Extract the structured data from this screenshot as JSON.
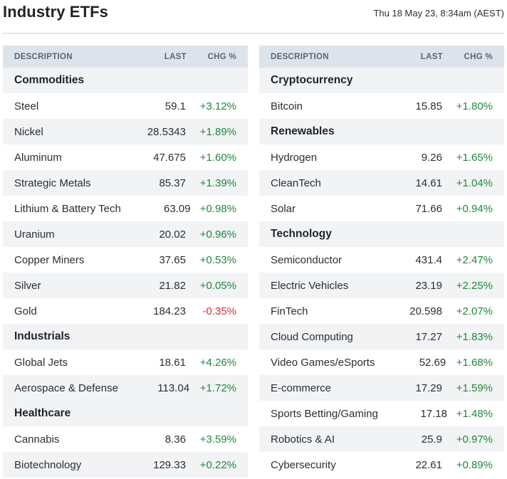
{
  "header": {
    "title": "Industry ETFs",
    "timestamp": "Thu 18 May 23, 8:34am (AEST)"
  },
  "columns": {
    "description": "DESCRIPTION",
    "last": "LAST",
    "chg": "CHG %"
  },
  "left_table": [
    {
      "type": "group",
      "label": "Commodities"
    },
    {
      "type": "item",
      "name": "Steel",
      "last": "59.1",
      "chg": "+3.12%",
      "dir": "pos"
    },
    {
      "type": "item",
      "name": "Nickel",
      "last": "28.5343",
      "chg": "+1.89%",
      "dir": "pos"
    },
    {
      "type": "item",
      "name": "Aluminum",
      "last": "47.675",
      "chg": "+1.60%",
      "dir": "pos"
    },
    {
      "type": "item",
      "name": "Strategic Metals",
      "last": "85.37",
      "chg": "+1.39%",
      "dir": "pos"
    },
    {
      "type": "item",
      "name": "Lithium & Battery Tech",
      "last": "63.09",
      "chg": "+0.98%",
      "dir": "pos"
    },
    {
      "type": "item",
      "name": "Uranium",
      "last": "20.02",
      "chg": "+0.96%",
      "dir": "pos"
    },
    {
      "type": "item",
      "name": "Copper Miners",
      "last": "37.65",
      "chg": "+0.53%",
      "dir": "pos"
    },
    {
      "type": "item",
      "name": "Silver",
      "last": "21.82",
      "chg": "+0.05%",
      "dir": "pos"
    },
    {
      "type": "item",
      "name": "Gold",
      "last": "184.23",
      "chg": "-0.35%",
      "dir": "neg"
    },
    {
      "type": "group",
      "label": "Industrials"
    },
    {
      "type": "item",
      "name": "Global Jets",
      "last": "18.61",
      "chg": "+4.26%",
      "dir": "pos"
    },
    {
      "type": "item",
      "name": "Aerospace & Defense",
      "last": "113.04",
      "chg": "+1.72%",
      "dir": "pos"
    },
    {
      "type": "group",
      "label": "Healthcare"
    },
    {
      "type": "item",
      "name": "Cannabis",
      "last": "8.36",
      "chg": "+3.59%",
      "dir": "pos"
    },
    {
      "type": "item",
      "name": "Biotechnology",
      "last": "129.33",
      "chg": "+0.22%",
      "dir": "pos"
    }
  ],
  "right_table": [
    {
      "type": "group",
      "label": "Cryptocurrency"
    },
    {
      "type": "item",
      "name": "Bitcoin",
      "last": "15.85",
      "chg": "+1.80%",
      "dir": "pos"
    },
    {
      "type": "group",
      "label": "Renewables"
    },
    {
      "type": "item",
      "name": "Hydrogen",
      "last": "9.26",
      "chg": "+1.65%",
      "dir": "pos"
    },
    {
      "type": "item",
      "name": "CleanTech",
      "last": "14.61",
      "chg": "+1.04%",
      "dir": "pos"
    },
    {
      "type": "item",
      "name": "Solar",
      "last": "71.66",
      "chg": "+0.94%",
      "dir": "pos"
    },
    {
      "type": "group",
      "label": "Technology"
    },
    {
      "type": "item",
      "name": "Semiconductor",
      "last": "431.4",
      "chg": "+2.47%",
      "dir": "pos"
    },
    {
      "type": "item",
      "name": "Electric Vehicles",
      "last": "23.19",
      "chg": "+2.25%",
      "dir": "pos"
    },
    {
      "type": "item",
      "name": "FinTech",
      "last": "20.598",
      "chg": "+2.07%",
      "dir": "pos"
    },
    {
      "type": "item",
      "name": "Cloud Computing",
      "last": "17.27",
      "chg": "+1.83%",
      "dir": "pos"
    },
    {
      "type": "item",
      "name": "Video Games/eSports",
      "last": "52.69",
      "chg": "+1.68%",
      "dir": "pos"
    },
    {
      "type": "item",
      "name": "E-commerce",
      "last": "17.29",
      "chg": "+1.59%",
      "dir": "pos"
    },
    {
      "type": "item",
      "name": "Sports Betting/Gaming",
      "last": "17.18",
      "chg": "+1.48%",
      "dir": "pos"
    },
    {
      "type": "item",
      "name": "Robotics & AI",
      "last": "25.9",
      "chg": "+0.97%",
      "dir": "pos"
    },
    {
      "type": "item",
      "name": "Cybersecurity",
      "last": "22.61",
      "chg": "+0.89%",
      "dir": "pos"
    }
  ],
  "colors": {
    "positive": "#21883b",
    "negative": "#d4303b",
    "header_bg": "#dde3ea",
    "stripe_bg": "#f1f3f5"
  }
}
